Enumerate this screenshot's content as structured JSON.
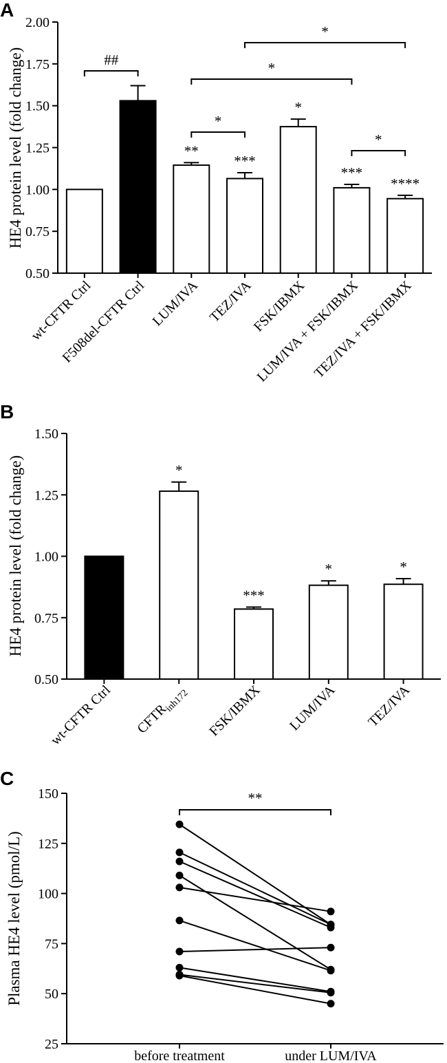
{
  "chart_data": [
    {
      "panel": "A",
      "type": "bar",
      "ylabel": "HE4 protein level (fold change)",
      "ylim": [
        0.5,
        2.0
      ],
      "yticks": [
        "0.50",
        "0.75",
        "1.00",
        "1.25",
        "1.50",
        "1.75",
        "2.00"
      ],
      "categories": [
        "wt-CFTR Ctrl",
        "F508del-CFTR Ctrl",
        "LUM/IVA",
        "TEZ/IVA",
        "FSK/IBMX",
        "LUM/IVA + FSK/IBMX",
        "TEZ/IVA + FSK/IBMX"
      ],
      "values": [
        1.0,
        1.53,
        1.145,
        1.065,
        1.375,
        1.01,
        0.945
      ],
      "errors": [
        0.0,
        0.09,
        0.015,
        0.035,
        0.045,
        0.02,
        0.02
      ],
      "fills": [
        "#ffffff",
        "#000000",
        "#ffffff",
        "#ffffff",
        "#ffffff",
        "#ffffff",
        "#ffffff"
      ],
      "bar_labels": [
        "",
        "",
        "**",
        "***",
        "*",
        "***",
        "****"
      ],
      "brackets": [
        {
          "from": 0,
          "to": 1,
          "label": "##"
        },
        {
          "from": 2,
          "to": 3,
          "label": "*"
        },
        {
          "from": 2,
          "to": 5,
          "label": "*"
        },
        {
          "from": 3,
          "to": 6,
          "label": "*"
        },
        {
          "from": 5,
          "to": 6,
          "label": "*"
        }
      ]
    },
    {
      "panel": "B",
      "type": "bar",
      "ylabel": "HE4 protein level (fold change)",
      "ylim": [
        0.5,
        1.5
      ],
      "yticks": [
        "0.50",
        "0.75",
        "1.00",
        "1.25",
        "1.50"
      ],
      "categories": [
        "wt-CFTR Ctrl",
        "CFTRinh172",
        "FSK/IBMX",
        "LUM/IVA",
        "TEZ/IVA"
      ],
      "values": [
        1.0,
        1.265,
        0.785,
        0.882,
        0.886
      ],
      "errors": [
        0.0,
        0.037,
        0.008,
        0.018,
        0.023
      ],
      "fills": [
        "#000000",
        "#ffffff",
        "#ffffff",
        "#ffffff",
        "#ffffff"
      ],
      "bar_labels": [
        "",
        "*",
        "***",
        "*",
        "*"
      ]
    },
    {
      "panel": "C",
      "type": "paired-scatter",
      "ylabel": "Plasma HE4 level (pmol/L)",
      "ylim": [
        25,
        150
      ],
      "yticks": [
        "25",
        "50",
        "75",
        "100",
        "125",
        "150"
      ],
      "categories": [
        "before treatment",
        "under LUM/IVA"
      ],
      "pairs": [
        [
          134.5,
          84.5
        ],
        [
          120.5,
          84.5
        ],
        [
          116.0,
          83.0
        ],
        [
          109.0,
          62.0
        ],
        [
          103.0,
          91.0
        ],
        [
          86.5,
          61.5
        ],
        [
          71.0,
          73.0
        ],
        [
          63.0,
          51.0
        ],
        [
          59.5,
          50.5
        ],
        [
          59.0,
          45.0
        ]
      ],
      "bracket_label": "**"
    }
  ],
  "panels": {
    "A": {
      "label": "A",
      "ylabel": "HE4 protein level (fold change)"
    },
    "B": {
      "label": "B",
      "ylabel": "HE4 protein level (fold change)",
      "cat1_main": "CFTR",
      "cat1_sub": "inh172"
    },
    "C": {
      "label": "C",
      "ylabel": "Plasma HE4 level (pmol/L)",
      "bracket_label": "**"
    }
  }
}
